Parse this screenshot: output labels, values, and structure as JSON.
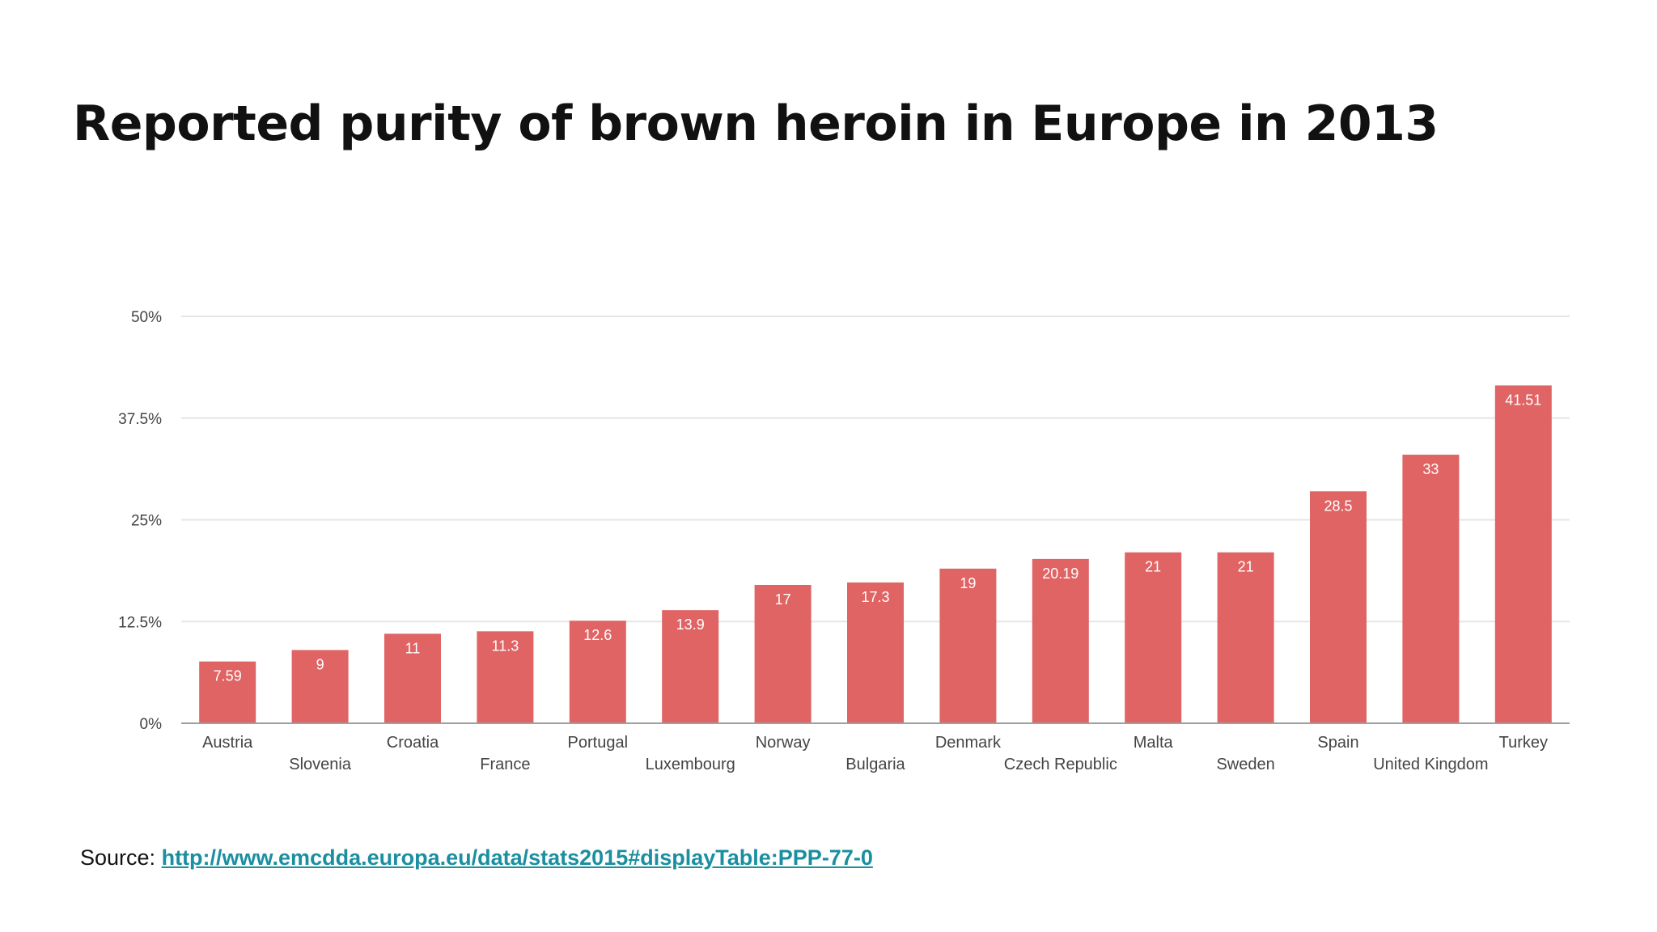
{
  "slide": {
    "title": "Reported purity of brown heroin in Europe in 2013"
  },
  "source": {
    "label": "Source:",
    "link_text": "http://www.emcdda.europa.eu/data/stats2015#displayTable:PPP-77-0"
  },
  "colors": {
    "bar": "#e06464",
    "link": "#1a8fa0",
    "grid": "#e6e6e6",
    "axis": "#9e9e9e",
    "text": "#111111",
    "tick_text": "#444444",
    "bar_label": "#ffffff"
  },
  "chart_data": {
    "type": "bar",
    "title": "",
    "xlabel": "",
    "ylabel": "",
    "categories": [
      "Austria",
      "Slovenia",
      "Croatia",
      "France",
      "Portugal",
      "Luxembourg",
      "Norway",
      "Bulgaria",
      "Denmark",
      "Czech Republic",
      "Malta",
      "Sweden",
      "Spain",
      "United Kingdom",
      "Turkey"
    ],
    "values": [
      7.59,
      9,
      11,
      11.3,
      12.6,
      13.9,
      17,
      17.3,
      19,
      20.19,
      21,
      21,
      28.5,
      33,
      41.51
    ],
    "value_labels": [
      "7.59",
      "9",
      "11",
      "11.3",
      "12.6",
      "13.9",
      "17",
      "17.3",
      "19",
      "20.19",
      "21",
      "21",
      "28.5",
      "33",
      "41.51"
    ],
    "ylim": [
      0,
      50
    ],
    "yticks": [
      0,
      12.5,
      25,
      37.5,
      50
    ],
    "ytick_labels": [
      "0%",
      "12.5%",
      "25%",
      "37.5%",
      "50%"
    ],
    "grid": true,
    "legend": "none"
  }
}
